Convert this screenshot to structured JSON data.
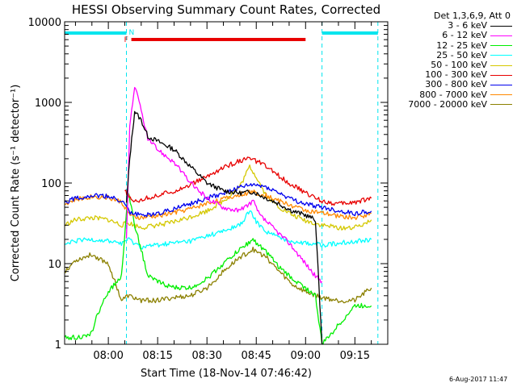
{
  "chart_data": {
    "type": "line",
    "title": "HESSI Observing Summary Count Rates, Corrected",
    "xlabel": "Start Time (18-Nov-14 07:46:42)",
    "ylabel": "Corrected Count Rate (s⁻¹ detector⁻¹)",
    "y_scale": "log",
    "ylim": [
      1,
      10000
    ],
    "xlim": [
      "07:46:42",
      "09:25:00"
    ],
    "x_ticks": [
      "08:00",
      "08:15",
      "08:30",
      "08:45",
      "09:00",
      "09:15"
    ],
    "y_ticks": [
      "1",
      "10",
      "100",
      "1000",
      "10000"
    ],
    "grid": false,
    "legend_position": "right",
    "legend_title": "Det 1,3,6,9, Att 0",
    "colors": {
      "3 - 6 keV": "#000000",
      "6 - 12 keV": "#ff00ff",
      "12 - 25 keV": "#00ee00",
      "25 - 50 keV": "#00ffff",
      "50 - 100 keV": "#d4c800",
      "100 - 300 keV": "#e80000",
      "300 - 800 keV": "#0000ee",
      "800 - 7000 keV": "#ff8800",
      "7000 - 20000 keV": "#8b8000"
    },
    "night_intervals": [
      [
        "07:46:42",
        "08:05:30"
      ],
      [
        "09:05:00",
        "09:22:00"
      ]
    ],
    "saa_interval": [
      "08:07:00",
      "09:00:00"
    ],
    "night_marker_label": "N",
    "saa_marker_label": "F",
    "series": [
      {
        "name": "3 - 6 keV",
        "color": "#000000",
        "points": [
          [
            "08:05:30",
            55
          ],
          [
            "08:06:30",
            200
          ],
          [
            "08:08:00",
            780
          ],
          [
            "08:10:00",
            600
          ],
          [
            "08:12:00",
            380
          ],
          [
            "08:15:00",
            330
          ],
          [
            "08:20:00",
            260
          ],
          [
            "08:25:00",
            160
          ],
          [
            "08:30:00",
            100
          ],
          [
            "08:35:00",
            80
          ],
          [
            "08:40:00",
            75
          ],
          [
            "08:44:00",
            78
          ],
          [
            "08:48:00",
            65
          ],
          [
            "08:52:00",
            55
          ],
          [
            "08:56:00",
            45
          ],
          [
            "09:00:00",
            40
          ],
          [
            "09:03:00",
            35
          ],
          [
            "09:05:00",
            1.0
          ]
        ]
      },
      {
        "name": "6 - 12 keV",
        "color": "#ff00ff",
        "points": [
          [
            "08:05:30",
            20
          ],
          [
            "08:06:30",
            500
          ],
          [
            "08:08:00",
            1600
          ],
          [
            "08:10:00",
            800
          ],
          [
            "08:12:00",
            350
          ],
          [
            "08:15:00",
            260
          ],
          [
            "08:20:00",
            180
          ],
          [
            "08:25:00",
            100
          ],
          [
            "08:30:00",
            65
          ],
          [
            "08:35:00",
            50
          ],
          [
            "08:40:00",
            45
          ],
          [
            "08:44:00",
            60
          ],
          [
            "08:46:00",
            40
          ],
          [
            "08:50:00",
            28
          ],
          [
            "08:55:00",
            18
          ],
          [
            "09:00:00",
            10
          ],
          [
            "09:03:00",
            7
          ],
          [
            "09:05:00",
            6
          ]
        ]
      },
      {
        "name": "12 - 25 keV",
        "color": "#00ee00",
        "points": [
          [
            "07:46:42",
            1.2
          ],
          [
            "07:54:00",
            1.25
          ],
          [
            "07:55:00",
            1.4
          ],
          [
            "07:56:00",
            2.0
          ],
          [
            "07:58:00",
            3.0
          ],
          [
            "08:00:00",
            4.5
          ],
          [
            "08:04:00",
            7
          ],
          [
            "08:06:00",
            80
          ],
          [
            "08:08:00",
            30
          ],
          [
            "08:10:00",
            15
          ],
          [
            "08:12:00",
            7
          ],
          [
            "08:15:00",
            6
          ],
          [
            "08:20:00",
            5
          ],
          [
            "08:25:00",
            5
          ],
          [
            "08:30:00",
            6.5
          ],
          [
            "08:35:00",
            10
          ],
          [
            "08:40:00",
            15
          ],
          [
            "08:44:00",
            20
          ],
          [
            "08:48:00",
            14
          ],
          [
            "08:52:00",
            9
          ],
          [
            "08:56:00",
            6.5
          ],
          [
            "09:00:00",
            5
          ],
          [
            "09:03:00",
            4
          ],
          [
            "09:05:00",
            1.0
          ],
          [
            "09:15:00",
            3
          ],
          [
            "09:20:00",
            3
          ]
        ]
      },
      {
        "name": "25 - 50 keV",
        "color": "#00ffff",
        "points": [
          [
            "07:46:42",
            17
          ],
          [
            "07:50:00",
            19
          ],
          [
            "07:55:00",
            20
          ],
          [
            "08:00:00",
            19
          ],
          [
            "08:04:00",
            18
          ],
          [
            "08:06:00",
            20
          ],
          [
            "08:10:00",
            16
          ],
          [
            "08:15:00",
            17
          ],
          [
            "08:20:00",
            18
          ],
          [
            "08:25:00",
            19
          ],
          [
            "08:30:00",
            22
          ],
          [
            "08:35:00",
            25
          ],
          [
            "08:40:00",
            30
          ],
          [
            "08:43:00",
            45
          ],
          [
            "08:45:00",
            33
          ],
          [
            "08:48:00",
            25
          ],
          [
            "08:52:00",
            21
          ],
          [
            "08:56:00",
            19
          ],
          [
            "09:00:00",
            18
          ],
          [
            "09:05:00",
            17
          ],
          [
            "09:10:00",
            18
          ],
          [
            "09:15:00",
            19
          ],
          [
            "09:20:00",
            20
          ]
        ]
      },
      {
        "name": "50 - 100 keV",
        "color": "#d4c800",
        "points": [
          [
            "07:46:42",
            30
          ],
          [
            "07:50:00",
            35
          ],
          [
            "07:55:00",
            37
          ],
          [
            "08:00:00",
            35
          ],
          [
            "08:04:00",
            30
          ],
          [
            "08:06:00",
            32
          ],
          [
            "08:10:00",
            28
          ],
          [
            "08:15:00",
            30
          ],
          [
            "08:20:00",
            33
          ],
          [
            "08:25:00",
            38
          ],
          [
            "08:30:00",
            45
          ],
          [
            "08:35:00",
            60
          ],
          [
            "08:40:00",
            90
          ],
          [
            "08:43:00",
            160
          ],
          [
            "08:45:00",
            120
          ],
          [
            "08:48:00",
            70
          ],
          [
            "08:52:00",
            50
          ],
          [
            "08:56:00",
            40
          ],
          [
            "09:00:00",
            34
          ],
          [
            "09:05:00",
            30
          ],
          [
            "09:10:00",
            28
          ],
          [
            "09:15:00",
            28
          ],
          [
            "09:20:00",
            35
          ]
        ]
      },
      {
        "name": "100 - 300 keV",
        "color": "#e80000",
        "points": [
          [
            "08:05:00",
            80
          ],
          [
            "08:07:00",
            60
          ],
          [
            "08:10:00",
            62
          ],
          [
            "08:15:00",
            70
          ],
          [
            "08:20:00",
            80
          ],
          [
            "08:25:00",
            95
          ],
          [
            "08:30:00",
            120
          ],
          [
            "08:35:00",
            155
          ],
          [
            "08:40:00",
            190
          ],
          [
            "08:43:00",
            200
          ],
          [
            "08:46:00",
            180
          ],
          [
            "08:50:00",
            140
          ],
          [
            "08:55:00",
            100
          ],
          [
            "09:00:00",
            75
          ],
          [
            "09:05:00",
            60
          ],
          [
            "09:10:00",
            55
          ],
          [
            "09:15:00",
            58
          ],
          [
            "09:20:00",
            65
          ]
        ]
      },
      {
        "name": "300 - 800 keV",
        "color": "#0000ee",
        "points": [
          [
            "07:46:42",
            58
          ],
          [
            "07:50:00",
            65
          ],
          [
            "07:55:00",
            70
          ],
          [
            "08:00:00",
            68
          ],
          [
            "08:04:00",
            60
          ],
          [
            "08:07:00",
            42
          ],
          [
            "08:10:00",
            40
          ],
          [
            "08:15:00",
            42
          ],
          [
            "08:20:00",
            48
          ],
          [
            "08:25:00",
            55
          ],
          [
            "08:30:00",
            65
          ],
          [
            "08:35:00",
            75
          ],
          [
            "08:40:00",
            88
          ],
          [
            "08:44:00",
            95
          ],
          [
            "08:48:00",
            90
          ],
          [
            "08:52:00",
            75
          ],
          [
            "08:56:00",
            62
          ],
          [
            "09:00:00",
            55
          ],
          [
            "09:05:00",
            50
          ],
          [
            "09:10:00",
            45
          ],
          [
            "09:15:00",
            42
          ],
          [
            "09:20:00",
            45
          ]
        ]
      },
      {
        "name": "800 - 7000 keV",
        "color": "#ff8800",
        "points": [
          [
            "07:46:42",
            55
          ],
          [
            "07:50:00",
            62
          ],
          [
            "07:55:00",
            68
          ],
          [
            "08:00:00",
            66
          ],
          [
            "08:04:00",
            58
          ],
          [
            "08:07:00",
            38
          ],
          [
            "08:10:00",
            37
          ],
          [
            "08:15:00",
            39
          ],
          [
            "08:20:00",
            43
          ],
          [
            "08:25:00",
            48
          ],
          [
            "08:30:00",
            56
          ],
          [
            "08:35:00",
            63
          ],
          [
            "08:40:00",
            72
          ],
          [
            "08:44:00",
            78
          ],
          [
            "08:48:00",
            70
          ],
          [
            "08:52:00",
            60
          ],
          [
            "08:56:00",
            52
          ],
          [
            "09:00:00",
            46
          ],
          [
            "09:05:00",
            42
          ],
          [
            "09:10:00",
            39
          ],
          [
            "09:15:00",
            37
          ],
          [
            "09:20:00",
            42
          ]
        ]
      },
      {
        "name": "7000 - 20000 keV",
        "color": "#8b8000",
        "points": [
          [
            "07:46:42",
            8
          ],
          [
            "07:50:00",
            11
          ],
          [
            "07:55:00",
            13
          ],
          [
            "08:00:00",
            10
          ],
          [
            "08:02:00",
            6
          ],
          [
            "08:04:00",
            3.5
          ],
          [
            "08:06:00",
            4
          ],
          [
            "08:10:00",
            3.5
          ],
          [
            "08:15:00",
            3.5
          ],
          [
            "08:20:00",
            3.8
          ],
          [
            "08:25:00",
            4
          ],
          [
            "08:30:00",
            5
          ],
          [
            "08:35:00",
            8
          ],
          [
            "08:40:00",
            12
          ],
          [
            "08:44:00",
            15
          ],
          [
            "08:48:00",
            12
          ],
          [
            "08:52:00",
            8
          ],
          [
            "08:56:00",
            5.5
          ],
          [
            "09:00:00",
            4.5
          ],
          [
            "09:05:00",
            3.8
          ],
          [
            "09:10:00",
            3.5
          ],
          [
            "09:15:00",
            3.5
          ],
          [
            "09:20:00",
            5
          ]
        ]
      }
    ]
  },
  "timestamp": "6-Aug-2017 11:47"
}
